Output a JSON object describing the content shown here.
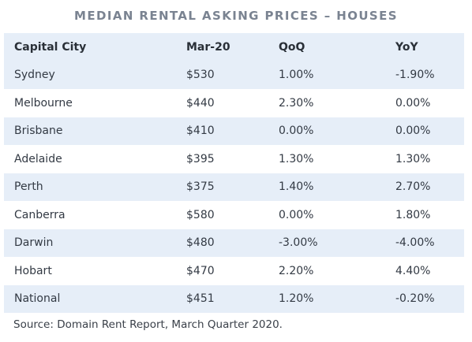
{
  "chart_data": {
    "type": "table",
    "title": "MEDIAN RENTAL ASKING PRICES – HOUSES",
    "columns": [
      "Capital City",
      "Mar-20",
      "QoQ",
      "YoY"
    ],
    "rows": [
      [
        "Sydney",
        "$530",
        "1.00%",
        "-1.90%"
      ],
      [
        "Melbourne",
        "$440",
        "2.30%",
        "0.00%"
      ],
      [
        "Brisbane",
        "$410",
        "0.00%",
        "0.00%"
      ],
      [
        "Adelaide",
        "$395",
        "1.30%",
        "1.30%"
      ],
      [
        "Perth",
        "$375",
        "1.40%",
        "2.70%"
      ],
      [
        "Canberra",
        "$580",
        "0.00%",
        "1.80%"
      ],
      [
        "Darwin",
        "$480",
        "-3.00%",
        "-4.00%"
      ],
      [
        "Hobart",
        "$470",
        "2.20%",
        "4.40%"
      ],
      [
        "National",
        "$451",
        "1.20%",
        "-0.20%"
      ]
    ],
    "source": "Source: Domain Rent Report, March Quarter 2020."
  },
  "colors": {
    "stripe": "#e6eef8",
    "title": "#7a8391",
    "text": "#2f3540"
  }
}
